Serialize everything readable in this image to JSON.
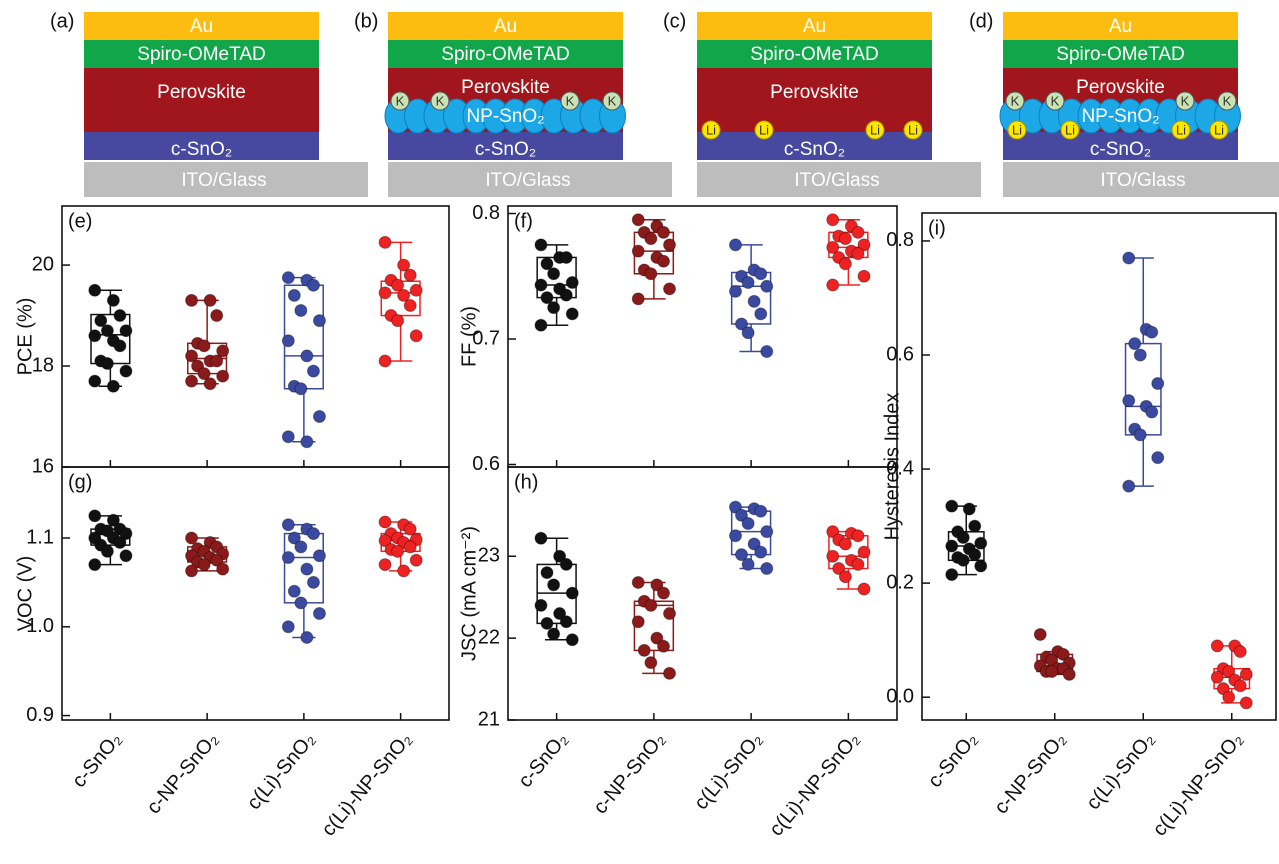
{
  "schematics": [
    {
      "label": "(a)",
      "au": "Au",
      "spiro": "Spiro-OMeTAD",
      "perovskite": "Perovskite",
      "etl": "c-SnO₂",
      "substrate": "ITO/Glass"
    },
    {
      "label": "(b)",
      "au": "Au",
      "spiro": "Spiro-OMeTAD",
      "perovskite": "Perovskite",
      "np": "NP-SnO₂",
      "etl": "c-SnO₂",
      "substrate": "ITO/Glass",
      "k": "K"
    },
    {
      "label": "(c)",
      "au": "Au",
      "spiro": "Spiro-OMeTAD",
      "perovskite": "Perovskite",
      "etl": "c-SnO₂",
      "substrate": "ITO/Glass",
      "li": "Li"
    },
    {
      "label": "(d)",
      "au": "Au",
      "spiro": "Spiro-OMeTAD",
      "perovskite": "Perovskite",
      "np": "NP-SnO₂",
      "etl": "c-SnO₂",
      "substrate": "ITO/Glass",
      "k": "K",
      "li": "Li"
    }
  ],
  "chart_data": [
    {
      "type": "box",
      "panel_label": "(e)",
      "ylabel": "PCE (%)",
      "ylim": [
        16,
        21.17
      ],
      "yticks": [
        16,
        18,
        20
      ],
      "boxes": [
        {
          "color": "#111111",
          "whisker_low": 17.6,
          "q1": 18.05,
          "median": 18.62,
          "q3": 19.02,
          "whisker_high": 19.5,
          "points": [
            19.5,
            19.3,
            19.0,
            18.9,
            18.7,
            18.7,
            18.6,
            18.5,
            18.4,
            18.1,
            18.05,
            17.9,
            17.7,
            17.6
          ]
        },
        {
          "color": "#8b1a1a",
          "whisker_low": 17.65,
          "q1": 17.85,
          "median": 18.15,
          "q3": 18.45,
          "whisker_high": 19.3,
          "points": [
            19.3,
            19.3,
            19.0,
            18.45,
            18.4,
            18.3,
            18.2,
            18.1,
            18.1,
            18.0,
            17.85,
            17.8,
            17.7,
            17.65
          ]
        },
        {
          "color": "#3a4aa0",
          "whisker_low": 16.5,
          "q1": 17.55,
          "median": 18.2,
          "q3": 19.6,
          "whisker_high": 19.75,
          "points": [
            19.75,
            19.7,
            19.6,
            19.4,
            19.1,
            18.9,
            18.5,
            18.2,
            17.9,
            17.6,
            17.55,
            17.0,
            16.6,
            16.5
          ]
        },
        {
          "color": "#ee2222",
          "whisker_low": 18.1,
          "q1": 19.0,
          "median": 19.45,
          "q3": 19.68,
          "whisker_high": 20.45,
          "points": [
            20.45,
            20.0,
            19.8,
            19.7,
            19.6,
            19.5,
            19.45,
            19.4,
            19.2,
            19.0,
            18.9,
            18.6,
            18.1
          ]
        }
      ]
    },
    {
      "type": "box",
      "panel_label": "(f)",
      "ylabel": "FF (%)",
      "ylim": [
        0.598,
        0.806
      ],
      "yticks": [
        0.6,
        0.7,
        0.8
      ],
      "boxes": [
        {
          "color": "#111111",
          "whisker_low": 0.711,
          "q1": 0.733,
          "median": 0.743,
          "q3": 0.765,
          "whisker_high": 0.775,
          "points": [
            0.775,
            0.765,
            0.765,
            0.76,
            0.752,
            0.745,
            0.743,
            0.74,
            0.735,
            0.733,
            0.725,
            0.72,
            0.711
          ]
        },
        {
          "color": "#8b1a1a",
          "whisker_low": 0.732,
          "q1": 0.752,
          "median": 0.77,
          "q3": 0.785,
          "whisker_high": 0.795,
          "points": [
            0.795,
            0.79,
            0.785,
            0.785,
            0.78,
            0.775,
            0.77,
            0.765,
            0.762,
            0.755,
            0.752,
            0.74,
            0.732
          ]
        },
        {
          "color": "#3a4aa0",
          "whisker_low": 0.69,
          "q1": 0.712,
          "median": 0.742,
          "q3": 0.753,
          "whisker_high": 0.775,
          "points": [
            0.775,
            0.755,
            0.752,
            0.75,
            0.745,
            0.742,
            0.738,
            0.73,
            0.72,
            0.712,
            0.705,
            0.69
          ]
        },
        {
          "color": "#ee2222",
          "whisker_low": 0.743,
          "q1": 0.765,
          "median": 0.773,
          "q3": 0.785,
          "whisker_high": 0.795,
          "points": [
            0.795,
            0.79,
            0.785,
            0.782,
            0.78,
            0.775,
            0.773,
            0.77,
            0.768,
            0.765,
            0.76,
            0.75,
            0.743
          ]
        }
      ]
    },
    {
      "type": "box",
      "panel_label": "(g)",
      "ylabel": "VOC (V)",
      "ylim": [
        0.895,
        1.18
      ],
      "yticks": [
        0.9,
        {
          "value": 1.0,
          "label": "1.0"
        },
        1.1
      ],
      "categories": [
        "c-SnO₂",
        "c-NP-SnO₂",
        "c(Li)-SnO₂",
        "c(Li)-NP-SnO₂"
      ],
      "boxes": [
        {
          "color": "#111111",
          "whisker_low": 1.07,
          "q1": 1.092,
          "median": 1.105,
          "q3": 1.11,
          "whisker_high": 1.125,
          "points": [
            1.125,
            1.12,
            1.11,
            1.11,
            1.108,
            1.105,
            1.1,
            1.1,
            1.095,
            1.092,
            1.085,
            1.08,
            1.07
          ]
        },
        {
          "color": "#8b1a1a",
          "whisker_low": 1.063,
          "q1": 1.073,
          "median": 1.08,
          "q3": 1.09,
          "whisker_high": 1.1,
          "points": [
            1.1,
            1.095,
            1.09,
            1.088,
            1.085,
            1.082,
            1.08,
            1.078,
            1.075,
            1.073,
            1.07,
            1.065,
            1.063
          ]
        },
        {
          "color": "#3a4aa0",
          "whisker_low": 0.988,
          "q1": 1.027,
          "median": 1.078,
          "q3": 1.105,
          "whisker_high": 1.115,
          "points": [
            1.115,
            1.11,
            1.105,
            1.1,
            1.09,
            1.08,
            1.078,
            1.065,
            1.05,
            1.04,
            1.027,
            1.015,
            1.0,
            0.988
          ]
        },
        {
          "color": "#ee2222",
          "whisker_low": 1.063,
          "q1": 1.085,
          "median": 1.097,
          "q3": 1.105,
          "whisker_high": 1.118,
          "points": [
            1.118,
            1.115,
            1.11,
            1.105,
            1.1,
            1.098,
            1.097,
            1.095,
            1.09,
            1.087,
            1.085,
            1.075,
            1.07,
            1.063
          ]
        }
      ]
    },
    {
      "type": "box",
      "panel_label": "(h)",
      "ylabel": "JSC (mA cm⁻²)",
      "ylim": [
        21,
        24.09
      ],
      "yticks": [
        21,
        22,
        23
      ],
      "categories": [
        "c-SnO₂",
        "c-NP-SnO₂",
        "c(Li)-SnO₂",
        "c(Li)-NP-SnO₂"
      ],
      "boxes": [
        {
          "color": "#111111",
          "whisker_low": 21.98,
          "q1": 22.18,
          "median": 22.55,
          "q3": 22.9,
          "whisker_high": 23.22,
          "points": [
            23.22,
            23.0,
            22.9,
            22.8,
            22.65,
            22.55,
            22.4,
            22.3,
            22.2,
            22.18,
            22.05,
            21.98
          ]
        },
        {
          "color": "#8b1a1a",
          "whisker_low": 21.57,
          "q1": 21.85,
          "median": 22.4,
          "q3": 22.45,
          "whisker_high": 22.68,
          "points": [
            22.68,
            22.65,
            22.55,
            22.45,
            22.4,
            22.3,
            22.2,
            22.0,
            21.9,
            21.85,
            21.7,
            21.57
          ]
        },
        {
          "color": "#3a4aa0",
          "whisker_low": 22.85,
          "q1": 23.02,
          "median": 23.3,
          "q3": 23.55,
          "whisker_high": 23.6,
          "points": [
            23.6,
            23.58,
            23.55,
            23.5,
            23.4,
            23.3,
            23.25,
            23.15,
            23.05,
            23.02,
            22.9,
            22.85
          ]
        },
        {
          "color": "#ee2222",
          "whisker_low": 22.6,
          "q1": 22.85,
          "median": 23.0,
          "q3": 23.25,
          "whisker_high": 23.3,
          "points": [
            23.3,
            23.28,
            23.25,
            23.2,
            23.15,
            23.05,
            23.0,
            22.95,
            22.9,
            22.85,
            22.75,
            22.6
          ]
        }
      ]
    },
    {
      "type": "box",
      "panel_label": "(i)",
      "ylabel": "Hysteresis Index",
      "ylim": [
        -0.04,
        0.849
      ],
      "yticks": [
        {
          "value": 0,
          "label": "0.0"
        },
        0.2,
        0.4,
        0.6,
        0.8
      ],
      "categories": [
        "c-SnO₂",
        "c-NP-SnO₂",
        "c(Li)-SnO₂",
        "c(Li)-NP-SnO₂"
      ],
      "boxes": [
        {
          "color": "#111111",
          "whisker_low": 0.215,
          "q1": 0.24,
          "median": 0.265,
          "q3": 0.29,
          "whisker_high": 0.335,
          "points": [
            0.335,
            0.33,
            0.3,
            0.29,
            0.28,
            0.27,
            0.265,
            0.26,
            0.25,
            0.245,
            0.24,
            0.23,
            0.215
          ]
        },
        {
          "color": "#8b1a1a",
          "whisker_low": 0.04,
          "q1": 0.045,
          "median": 0.055,
          "q3": 0.075,
          "whisker_high": 0.08,
          "points": [
            0.11,
            0.08,
            0.075,
            0.07,
            0.065,
            0.06,
            0.055,
            0.05,
            0.05,
            0.045,
            0.045,
            0.04
          ]
        },
        {
          "color": "#3a4aa0",
          "whisker_low": 0.37,
          "q1": 0.46,
          "median": 0.51,
          "q3": 0.62,
          "whisker_high": 0.77,
          "points": [
            0.77,
            0.645,
            0.64,
            0.62,
            0.6,
            0.55,
            0.52,
            0.51,
            0.5,
            0.47,
            0.46,
            0.42,
            0.37
          ]
        },
        {
          "color": "#ee2222",
          "whisker_low": -0.01,
          "q1": 0.015,
          "median": 0.035,
          "q3": 0.05,
          "whisker_high": 0.09,
          "points": [
            0.09,
            0.09,
            0.08,
            0.05,
            0.045,
            0.04,
            0.035,
            0.03,
            0.02,
            0.015,
            0.0,
            -0.01
          ]
        }
      ]
    }
  ]
}
